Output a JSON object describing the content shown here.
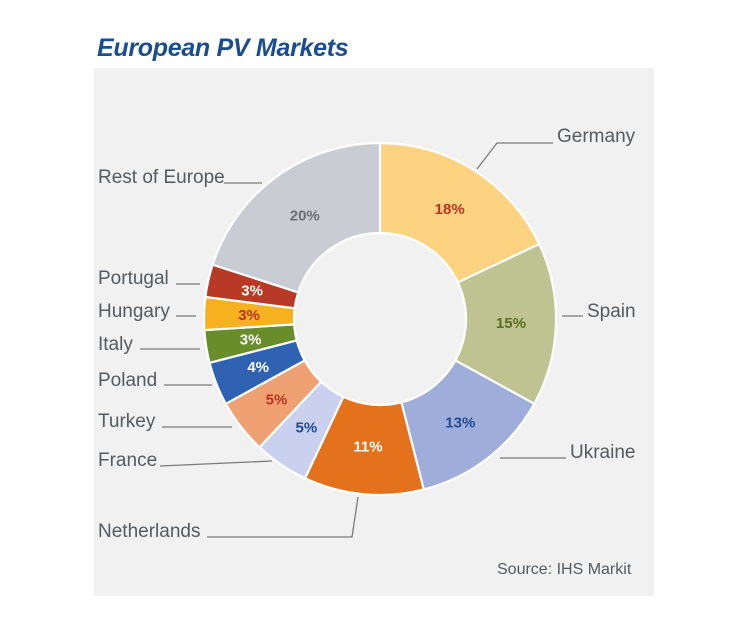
{
  "chart_data": {
    "type": "pie",
    "title": "European PV Markets",
    "source": "Source: IHS Markit",
    "slices": [
      {
        "label": "Germany",
        "value": 18,
        "value_label": "18%",
        "color": "#fdd382",
        "text_color": "#b8351f"
      },
      {
        "label": "Spain",
        "value": 15,
        "value_label": "15%",
        "color": "#bfc291",
        "text_color": "#5a6f1c"
      },
      {
        "label": "Ukraine",
        "value": 13,
        "value_label": "13%",
        "color": "#9eadd9",
        "text_color": "#1f4c94"
      },
      {
        "label": "Netherlands",
        "value": 11,
        "value_label": "11%",
        "color": "#e4711c",
        "text_color": "#ffffff"
      },
      {
        "label": "France",
        "value": 5,
        "value_label": "5%",
        "color": "#c9d1ef",
        "text_color": "#1f4c94"
      },
      {
        "label": "Turkey",
        "value": 5,
        "value_label": "5%",
        "color": "#f0a173",
        "text_color": "#b8351f"
      },
      {
        "label": "Poland",
        "value": 4,
        "value_label": "4%",
        "color": "#2f62b3",
        "text_color": "#ffffff"
      },
      {
        "label": "Italy",
        "value": 3,
        "value_label": "3%",
        "color": "#6a8d2c",
        "text_color": "#ffffff"
      },
      {
        "label": "Hungary",
        "value": 3,
        "value_label": "3%",
        "color": "#f7b11f",
        "text_color": "#b8351f"
      },
      {
        "label": "Portugal",
        "value": 3,
        "value_label": "3%",
        "color": "#b83a26",
        "text_color": "#ffffff"
      },
      {
        "label": "Rest of Europe",
        "value": 20,
        "value_label": "20%",
        "color": "#c9cdd3",
        "text_color": "#6b6f74"
      }
    ]
  }
}
